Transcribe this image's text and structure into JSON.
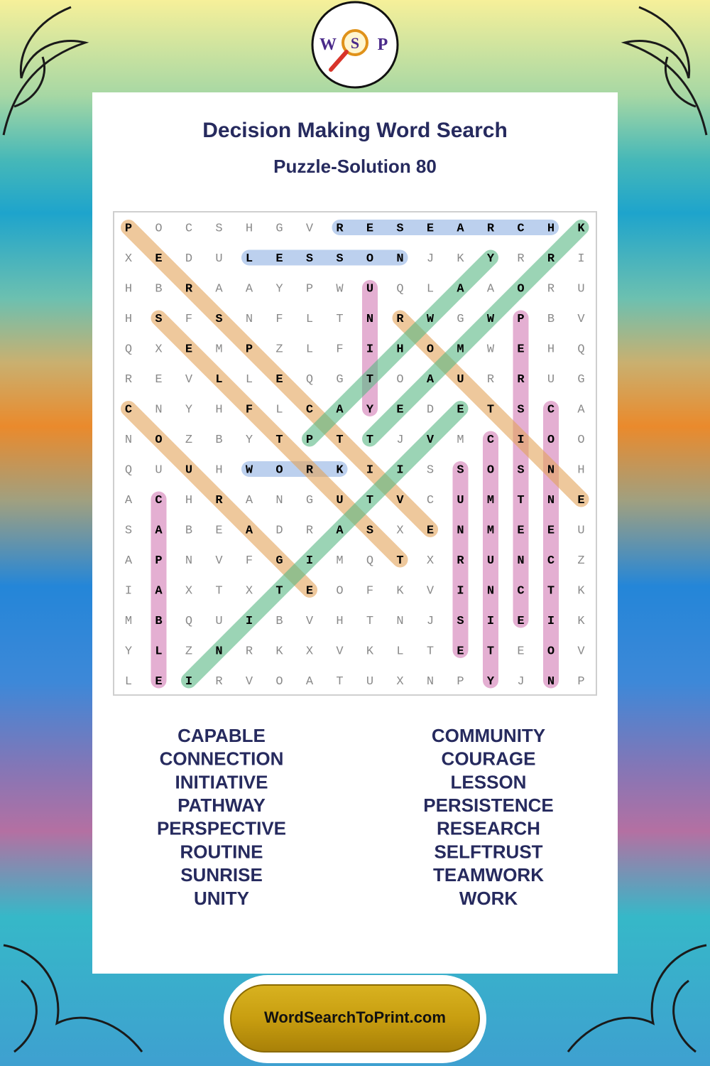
{
  "header": {
    "title": "Decision Making Word Search",
    "subtitle": "Puzzle-Solution 80",
    "logo": [
      "W",
      "S",
      "P"
    ]
  },
  "grid": {
    "rows": [
      [
        "P",
        "O",
        "C",
        "S",
        "H",
        "G",
        "V",
        "R",
        "E",
        "S",
        "E",
        "A",
        "R",
        "C",
        "H",
        "K"
      ],
      [
        "X",
        "E",
        "D",
        "U",
        "L",
        "E",
        "S",
        "S",
        "O",
        "N",
        "J",
        "K",
        "Y",
        "R",
        "R",
        "I"
      ],
      [
        "H",
        "B",
        "R",
        "A",
        "A",
        "Y",
        "P",
        "W",
        "U",
        "Q",
        "L",
        "A",
        "A",
        "O",
        "R",
        "U"
      ],
      [
        "H",
        "S",
        "F",
        "S",
        "N",
        "F",
        "L",
        "T",
        "N",
        "R",
        "W",
        "G",
        "W",
        "P",
        "B",
        "V"
      ],
      [
        "Q",
        "X",
        "E",
        "M",
        "P",
        "Z",
        "L",
        "F",
        "I",
        "H",
        "O",
        "M",
        "W",
        "E",
        "H",
        "Q"
      ],
      [
        "R",
        "E",
        "V",
        "L",
        "L",
        "E",
        "Q",
        "G",
        "T",
        "O",
        "A",
        "U",
        "R",
        "R",
        "U",
        "G"
      ],
      [
        "C",
        "N",
        "Y",
        "H",
        "F",
        "L",
        "C",
        "A",
        "Y",
        "E",
        "D",
        "E",
        "T",
        "S",
        "C",
        "A"
      ],
      [
        "N",
        "O",
        "Z",
        "B",
        "Y",
        "T",
        "P",
        "T",
        "T",
        "J",
        "V",
        "M",
        "C",
        "I",
        "O",
        "O"
      ],
      [
        "Q",
        "U",
        "U",
        "H",
        "W",
        "O",
        "R",
        "K",
        "I",
        "I",
        "S",
        "S",
        "O",
        "S",
        "N",
        "H"
      ],
      [
        "A",
        "C",
        "H",
        "R",
        "A",
        "N",
        "G",
        "U",
        "T",
        "V",
        "C",
        "U",
        "M",
        "T",
        "N",
        "E"
      ],
      [
        "S",
        "A",
        "B",
        "E",
        "A",
        "D",
        "R",
        "A",
        "S",
        "X",
        "E",
        "N",
        "M",
        "E",
        "E",
        "U"
      ],
      [
        "A",
        "P",
        "N",
        "V",
        "F",
        "G",
        "I",
        "M",
        "Q",
        "T",
        "X",
        "R",
        "U",
        "N",
        "C",
        "Z"
      ],
      [
        "I",
        "A",
        "X",
        "T",
        "X",
        "T",
        "E",
        "O",
        "F",
        "K",
        "V",
        "I",
        "N",
        "C",
        "T",
        "K"
      ],
      [
        "M",
        "B",
        "Q",
        "U",
        "I",
        "B",
        "V",
        "H",
        "T",
        "N",
        "J",
        "S",
        "I",
        "E",
        "I",
        "K"
      ],
      [
        "Y",
        "L",
        "Z",
        "N",
        "R",
        "K",
        "X",
        "V",
        "K",
        "L",
        "T",
        "E",
        "T",
        "E",
        "O",
        "V"
      ],
      [
        "L",
        "E",
        "I",
        "R",
        "V",
        "O",
        "A",
        "T",
        "U",
        "X",
        "N",
        "P",
        "Y",
        "J",
        "N",
        "P"
      ]
    ],
    "highlights": [
      [
        0,
        7,
        0,
        14,
        "#8fb1e3"
      ],
      [
        1,
        4,
        1,
        9,
        "#8fb1e3"
      ],
      [
        8,
        4,
        8,
        7,
        "#8fb1e3"
      ],
      [
        2,
        8,
        6,
        8,
        "#d27ab4"
      ],
      [
        3,
        13,
        13,
        13,
        "#d27ab4"
      ],
      [
        6,
        14,
        15,
        14,
        "#d27ab4"
      ],
      [
        7,
        12,
        15,
        12,
        "#d27ab4"
      ],
      [
        8,
        11,
        14,
        11,
        "#d27ab4"
      ],
      [
        9,
        1,
        15,
        1,
        "#d27ab4"
      ],
      [
        0,
        0,
        10,
        10,
        "#e3a45a"
      ],
      [
        3,
        1,
        11,
        9,
        "#e3a45a"
      ],
      [
        6,
        0,
        12,
        6,
        "#e3a45a"
      ],
      [
        3,
        9,
        9,
        15,
        "#e3a45a"
      ],
      [
        15,
        2,
        6,
        11,
        "#58b884"
      ],
      [
        7,
        6,
        1,
        12,
        "#58b884"
      ],
      [
        7,
        8,
        0,
        15,
        "#58b884"
      ]
    ]
  },
  "words": {
    "left": [
      "CAPABLE",
      "CONNECTION",
      "INITIATIVE",
      "PATHWAY",
      "PERSPECTIVE",
      "ROUTINE",
      "SUNRISE",
      "UNITY"
    ],
    "right": [
      "COMMUNITY",
      "COURAGE",
      "LESSON",
      "PERSISTENCE",
      "RESEARCH",
      "SELFTRUST",
      "TEAMWORK",
      "WORK"
    ]
  },
  "footer": {
    "site": "WordSearchToPrint.com"
  }
}
